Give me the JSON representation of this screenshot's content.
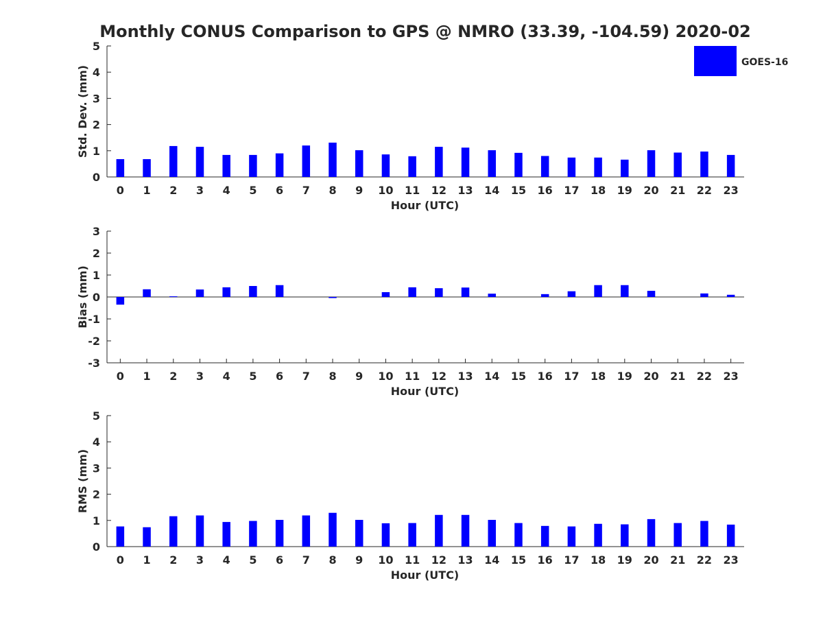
{
  "title": "Monthly CONUS Comparison to GPS @ NMRO (33.39, -104.59) 2020-02",
  "colors": {
    "bar": "#0000ff",
    "axis": "#262626",
    "text": "#262626",
    "background": "#ffffff"
  },
  "chart_data": [
    {
      "type": "bar",
      "ylabel": "Std. Dev. (mm)",
      "xlabel": "Hour (UTC)",
      "ylim": [
        0,
        5
      ],
      "yticks": [
        "0",
        "1",
        "2",
        "3",
        "4",
        "5"
      ],
      "categories": [
        "0",
        "1",
        "2",
        "3",
        "4",
        "5",
        "6",
        "7",
        "8",
        "9",
        "10",
        "11",
        "12",
        "13",
        "14",
        "15",
        "16",
        "17",
        "18",
        "19",
        "20",
        "21",
        "22",
        "23"
      ],
      "series": [
        {
          "name": "GOES-16",
          "values": [
            0.68,
            0.68,
            1.18,
            1.15,
            0.84,
            0.84,
            0.9,
            1.2,
            1.31,
            1.02,
            0.86,
            0.79,
            1.15,
            1.12,
            1.02,
            0.92,
            0.8,
            0.74,
            0.74,
            0.66,
            1.02,
            0.93,
            0.97,
            0.84
          ]
        }
      ],
      "legend": {
        "entries": [
          "GOES-16"
        ],
        "position": "top-right"
      },
      "grid": false
    },
    {
      "type": "bar",
      "ylabel": "Bias (mm)",
      "xlabel": "Hour (UTC)",
      "ylim": [
        -3,
        3
      ],
      "yticks": [
        "-3",
        "-2",
        "-1",
        "0",
        "1",
        "2",
        "3"
      ],
      "categories": [
        "0",
        "1",
        "2",
        "3",
        "4",
        "5",
        "6",
        "7",
        "8",
        "9",
        "10",
        "11",
        "12",
        "13",
        "14",
        "15",
        "16",
        "17",
        "18",
        "19",
        "20",
        "21",
        "22",
        "23"
      ],
      "series": [
        {
          "name": "GOES-16",
          "values": [
            -0.35,
            0.35,
            0.03,
            0.34,
            0.44,
            0.5,
            0.54,
            0.0,
            -0.05,
            0.0,
            0.22,
            0.44,
            0.4,
            0.43,
            0.15,
            0.0,
            0.13,
            0.26,
            0.54,
            0.54,
            0.28,
            0.0,
            0.16,
            0.1
          ]
        }
      ],
      "grid": false
    },
    {
      "type": "bar",
      "ylabel": "RMS (mm)",
      "xlabel": "Hour (UTC)",
      "ylim": [
        0,
        5
      ],
      "yticks": [
        "0",
        "1",
        "2",
        "3",
        "4",
        "5"
      ],
      "categories": [
        "0",
        "1",
        "2",
        "3",
        "4",
        "5",
        "6",
        "7",
        "8",
        "9",
        "10",
        "11",
        "12",
        "13",
        "14",
        "15",
        "16",
        "17",
        "18",
        "19",
        "20",
        "21",
        "22",
        "23"
      ],
      "series": [
        {
          "name": "GOES-16",
          "values": [
            0.77,
            0.74,
            1.16,
            1.19,
            0.94,
            0.98,
            1.02,
            1.19,
            1.29,
            1.02,
            0.89,
            0.9,
            1.21,
            1.21,
            1.02,
            0.9,
            0.79,
            0.77,
            0.87,
            0.85,
            1.05,
            0.9,
            0.98,
            0.84
          ]
        }
      ],
      "grid": false
    }
  ]
}
